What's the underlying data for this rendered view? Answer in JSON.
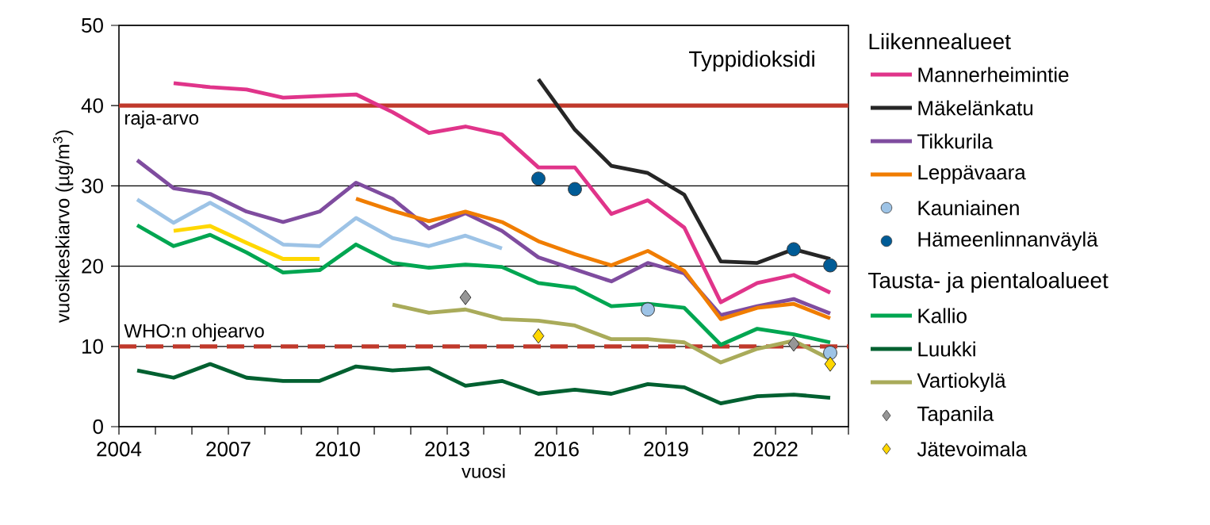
{
  "chart_data": {
    "type": "line",
    "title": "Typpidioksidi",
    "xlabel": "vuosi",
    "ylabel": "vuosikeskiarvo (µg/m$^{3}$)",
    "x": [
      2004.5,
      2005.5,
      2006.5,
      2007.5,
      2008.5,
      2009.5,
      2010.5,
      2011.5,
      2012.5,
      2013.5,
      2014.5,
      2015.5,
      2016.5,
      2017.5,
      2018.5,
      2019.5,
      2020.5,
      2021.5,
      2022.5,
      2023.5
    ],
    "series": [
      {
        "color": "#9dc3e6",
        "values": [
          28.3,
          25.4,
          27.9,
          25.4,
          22.7,
          22.5,
          26.0,
          23.5,
          22.5,
          23.8,
          22.2,
          null,
          null,
          null,
          null,
          null,
          null,
          null,
          null,
          null
        ]
      },
      {
        "color": "#ffd700",
        "values": [
          null,
          24.4,
          25.0,
          22.9,
          20.9,
          20.9,
          null,
          null,
          null,
          null,
          null,
          null,
          null,
          null,
          null,
          null,
          null,
          null,
          null,
          null
        ]
      },
      {
        "name": "Mannerheimintie",
        "color": "#e0348a",
        "values": [
          null,
          42.8,
          42.3,
          42.0,
          41.0,
          41.2,
          41.4,
          39.2,
          36.6,
          37.4,
          36.4,
          32.3,
          32.3,
          26.5,
          28.2,
          24.8,
          15.5,
          17.9,
          18.9,
          16.7
        ]
      },
      {
        "name": "Mäkelänkatu",
        "color": "#262626",
        "values": [
          null,
          null,
          null,
          null,
          null,
          null,
          null,
          null,
          null,
          null,
          null,
          43.3,
          37.0,
          32.5,
          31.6,
          28.9,
          20.6,
          20.4,
          22.1,
          20.9
        ]
      },
      {
        "name": "Tikkurila",
        "color": "#7f4c9f",
        "values": [
          33.2,
          29.7,
          29.0,
          26.8,
          25.5,
          26.8,
          30.4,
          28.4,
          24.7,
          26.6,
          24.4,
          21.1,
          19.6,
          18.1,
          20.4,
          19.1,
          13.9,
          15.0,
          15.9,
          14.1
        ]
      },
      {
        "name": "Leppävaara",
        "color": "#f07d00",
        "values": [
          null,
          null,
          null,
          null,
          null,
          null,
          28.4,
          26.9,
          25.6,
          26.8,
          25.5,
          23.1,
          21.5,
          20.1,
          21.9,
          19.4,
          13.4,
          14.8,
          15.3,
          13.5
        ]
      },
      {
        "type": "scatter",
        "name": "Kauniainen",
        "color": "#9dc3e6",
        "marker": "circle",
        "values": [
          null,
          null,
          null,
          null,
          null,
          null,
          null,
          null,
          null,
          null,
          null,
          null,
          null,
          null,
          14.6,
          null,
          null,
          null,
          null,
          9.2
        ]
      },
      {
        "type": "scatter",
        "name": "Hämeenlinnanväylä",
        "color": "#005b96",
        "marker": "circle",
        "values": [
          null,
          null,
          null,
          null,
          null,
          null,
          null,
          null,
          null,
          null,
          null,
          30.9,
          29.6,
          null,
          null,
          null,
          null,
          null,
          22.1,
          20.1
        ]
      },
      {
        "name": "Kallio",
        "color": "#00a651",
        "values": [
          25.1,
          22.5,
          23.9,
          21.7,
          19.2,
          19.5,
          22.7,
          20.4,
          19.8,
          20.2,
          19.9,
          17.9,
          17.3,
          15.0,
          15.3,
          14.8,
          10.2,
          12.2,
          11.5,
          10.5
        ]
      },
      {
        "name": "Luukki",
        "color": "#006030",
        "values": [
          7.0,
          6.1,
          7.8,
          6.1,
          5.7,
          5.7,
          7.5,
          7.0,
          7.3,
          5.1,
          5.7,
          4.1,
          4.6,
          4.1,
          5.3,
          4.9,
          2.9,
          3.8,
          4.0,
          3.6
        ]
      },
      {
        "name": "Vartiokylä",
        "color": "#a9ab5a",
        "values": [
          null,
          null,
          null,
          null,
          null,
          null,
          null,
          15.2,
          14.2,
          14.6,
          13.4,
          13.2,
          12.6,
          10.9,
          10.9,
          10.5,
          8.0,
          9.7,
          10.7,
          8.4
        ]
      },
      {
        "type": "scatter",
        "name": "Tapanila",
        "color": "#969696",
        "marker": "diamond",
        "values": [
          null,
          null,
          null,
          null,
          null,
          null,
          null,
          null,
          null,
          16.1,
          null,
          null,
          null,
          null,
          null,
          null,
          null,
          null,
          10.3,
          null
        ]
      },
      {
        "type": "scatter",
        "name": "Jätevoimala",
        "color": "#ffd700",
        "marker": "diamond",
        "values": [
          null,
          null,
          null,
          null,
          null,
          null,
          null,
          null,
          null,
          null,
          null,
          11.3,
          null,
          null,
          null,
          null,
          null,
          null,
          null,
          7.8
        ]
      }
    ],
    "xlim": [
      2004,
      2024
    ],
    "xticks": [
      2004,
      {
        "value": 2005,
        "label": null
      },
      {
        "value": 2006,
        "label": null
      },
      2007,
      {
        "value": 2008,
        "label": null
      },
      {
        "value": 2009,
        "label": null
      },
      2010,
      {
        "value": 2011,
        "label": null
      },
      {
        "value": 2012,
        "label": null
      },
      2013,
      {
        "value": 2014,
        "label": null
      },
      {
        "value": 2015,
        "label": null
      },
      2016,
      {
        "value": 2017,
        "label": null
      },
      {
        "value": 2018,
        "label": null
      },
      2019,
      {
        "value": 2020,
        "label": null
      },
      {
        "value": 2021,
        "label": null
      },
      2022,
      {
        "value": 2023,
        "label": null
      },
      {
        "value": 2024,
        "label": null
      }
    ],
    "ylim": [
      0,
      50
    ],
    "yticks": [
      0,
      10,
      20,
      30,
      40,
      50
    ],
    "grid": "y",
    "legend": "right",
    "ref_lines": [
      {
        "axis": "y",
        "value": 40,
        "label": "raja-arvo",
        "color": "#c0392b",
        "line_style": "solid"
      },
      {
        "axis": "y",
        "value": 10,
        "label": "WHO:n ohjearvo",
        "color": "#c0392b",
        "line_style": "dashed"
      }
    ],
    "annotations": [
      "Liikennealueet",
      "Tausta- ja pientaloalueet"
    ]
  }
}
